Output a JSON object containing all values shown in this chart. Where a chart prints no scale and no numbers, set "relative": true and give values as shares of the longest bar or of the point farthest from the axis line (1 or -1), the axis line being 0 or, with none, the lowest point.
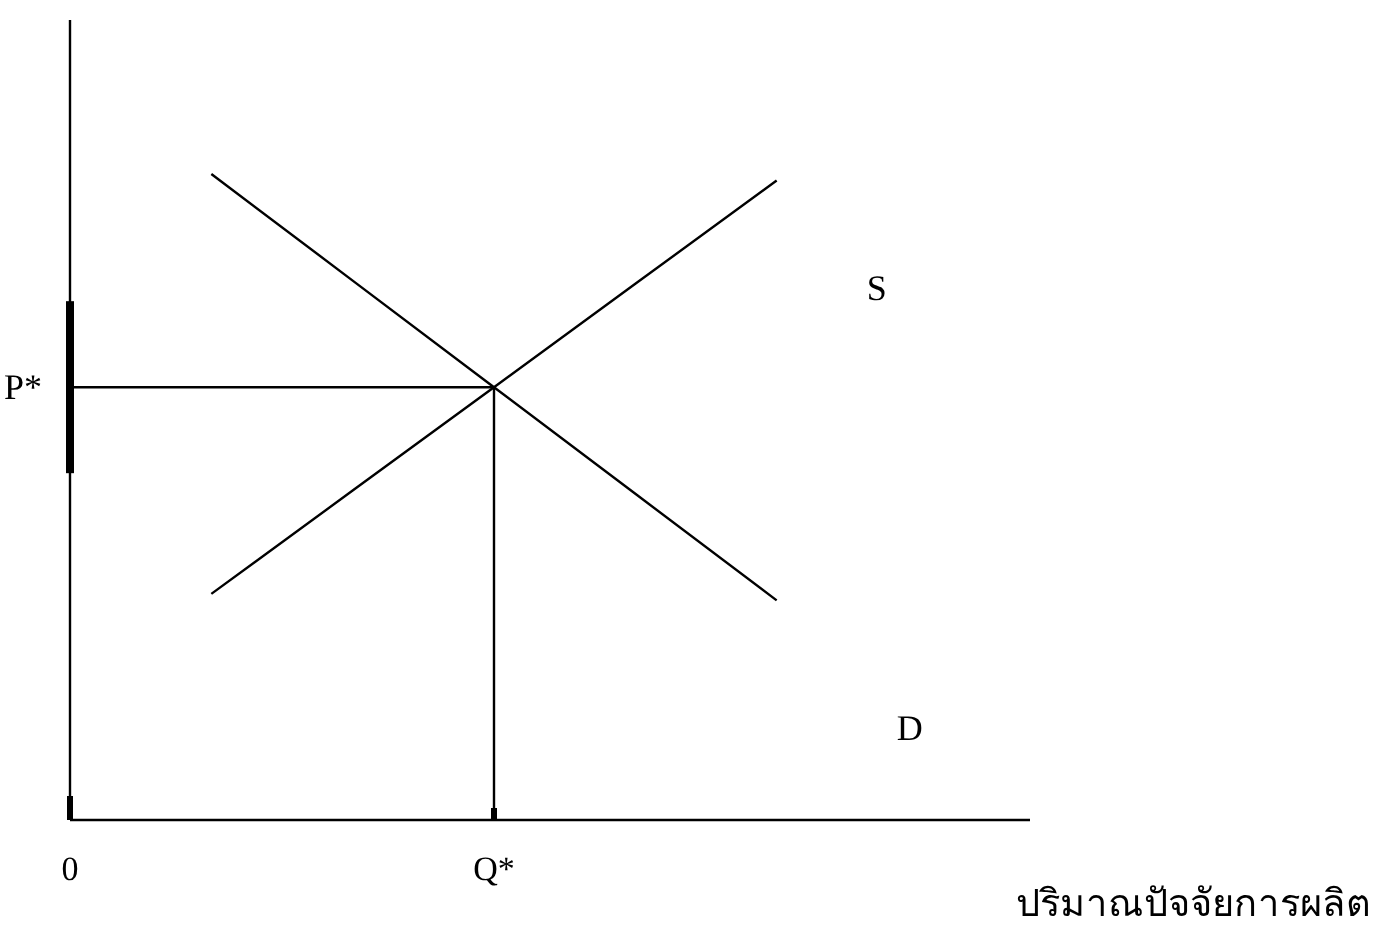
{
  "chart_data": {
    "type": "line",
    "relative": true,
    "xlabel": "ปริมาณปัจจัยการผลิต",
    "categories": [
      "0",
      null,
      null,
      "Q*",
      null,
      null,
      null,
      null
    ],
    "series": [
      {
        "name": "S",
        "color": "#000000",
        "values": [
          null,
          0.35,
          0.51,
          0.67,
          0.83,
          0.99,
          null,
          null
        ]
      },
      {
        "name": "D",
        "color": "#000000",
        "values": [
          null,
          1,
          0.835,
          0.67,
          0.505,
          0.34,
          null,
          null
        ]
      }
    ],
    "ref_lines": [
      {
        "axis": "y",
        "value": 0.67,
        "label": "P*"
      },
      {
        "axis": "x",
        "value": "Q*",
        "label": null
      }
    ],
    "legend": false,
    "line_style": "solid"
  }
}
